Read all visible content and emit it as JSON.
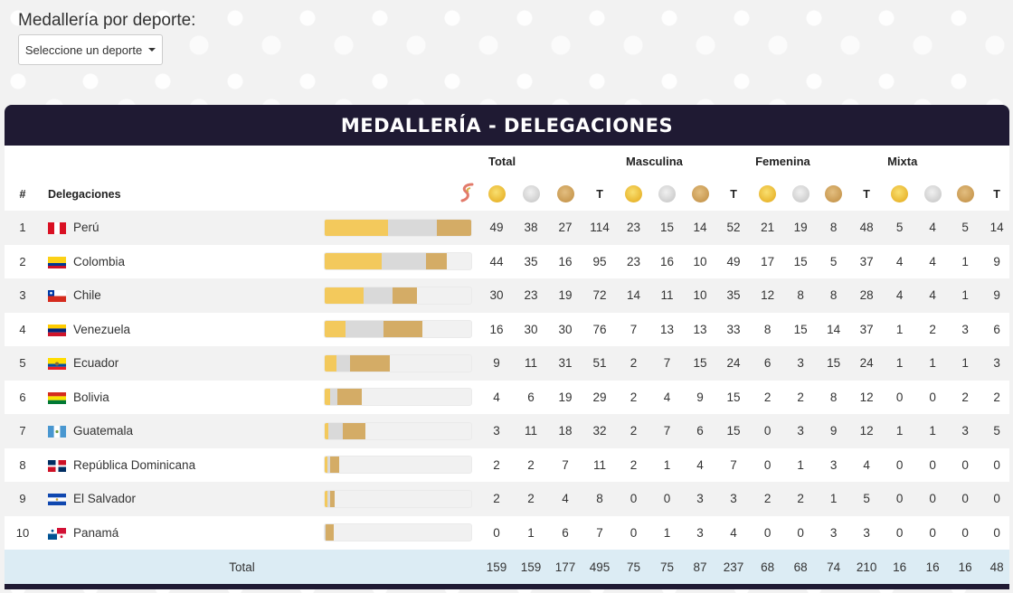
{
  "filter": {
    "label": "Medallería por deporte:",
    "select_value": "Seleccione un deporte"
  },
  "panel": {
    "title": "MEDALLERÍA - DELEGACIONES"
  },
  "columns": {
    "groups": [
      "Total",
      "Masculina",
      "Femenina",
      "Mixta"
    ],
    "rank": "#",
    "delegation": "Delegaciones",
    "total_short": "T"
  },
  "colors": {
    "gold": "#f3c95c",
    "silver": "#d9d9d9",
    "bronze": "#d4ac66",
    "header_bg": "#1f1a33",
    "footer_bg": "#dcecf4"
  },
  "rows": [
    {
      "rank": "1",
      "name": "Perú",
      "flag": "peru",
      "total": [
        49,
        38,
        27,
        114
      ],
      "masc": [
        23,
        15,
        14,
        52
      ],
      "fem": [
        21,
        19,
        8,
        48
      ],
      "mixta": [
        5,
        4,
        5,
        14
      ]
    },
    {
      "rank": "2",
      "name": "Colombia",
      "flag": "colombia",
      "total": [
        44,
        35,
        16,
        95
      ],
      "masc": [
        23,
        16,
        10,
        49
      ],
      "fem": [
        17,
        15,
        5,
        37
      ],
      "mixta": [
        4,
        4,
        1,
        9
      ]
    },
    {
      "rank": "3",
      "name": "Chile",
      "flag": "chile",
      "total": [
        30,
        23,
        19,
        72
      ],
      "masc": [
        14,
        11,
        10,
        35
      ],
      "fem": [
        12,
        8,
        8,
        28
      ],
      "mixta": [
        4,
        4,
        1,
        9
      ]
    },
    {
      "rank": "4",
      "name": "Venezuela",
      "flag": "venezuela",
      "total": [
        16,
        30,
        30,
        76
      ],
      "masc": [
        7,
        13,
        13,
        33
      ],
      "fem": [
        8,
        15,
        14,
        37
      ],
      "mixta": [
        1,
        2,
        3,
        6
      ]
    },
    {
      "rank": "5",
      "name": "Ecuador",
      "flag": "ecuador",
      "total": [
        9,
        11,
        31,
        51
      ],
      "masc": [
        2,
        7,
        15,
        24
      ],
      "fem": [
        6,
        3,
        15,
        24
      ],
      "mixta": [
        1,
        1,
        1,
        3
      ]
    },
    {
      "rank": "6",
      "name": "Bolivia",
      "flag": "bolivia",
      "total": [
        4,
        6,
        19,
        29
      ],
      "masc": [
        2,
        4,
        9,
        15
      ],
      "fem": [
        2,
        2,
        8,
        12
      ],
      "mixta": [
        0,
        0,
        2,
        2
      ]
    },
    {
      "rank": "7",
      "name": "Guatemala",
      "flag": "guatemala",
      "total": [
        3,
        11,
        18,
        32
      ],
      "masc": [
        2,
        7,
        6,
        15
      ],
      "fem": [
        0,
        3,
        9,
        12
      ],
      "mixta": [
        1,
        1,
        3,
        5
      ]
    },
    {
      "rank": "8",
      "name": "República Dominicana",
      "flag": "dominicana",
      "total": [
        2,
        2,
        7,
        11
      ],
      "masc": [
        2,
        1,
        4,
        7
      ],
      "fem": [
        0,
        1,
        3,
        4
      ],
      "mixta": [
        0,
        0,
        0,
        0
      ]
    },
    {
      "rank": "9",
      "name": "El Salvador",
      "flag": "salvador",
      "total": [
        2,
        2,
        4,
        8
      ],
      "masc": [
        0,
        0,
        3,
        3
      ],
      "fem": [
        2,
        2,
        1,
        5
      ],
      "mixta": [
        0,
        0,
        0,
        0
      ]
    },
    {
      "rank": "10",
      "name": "Panamá",
      "flag": "panama",
      "total": [
        0,
        1,
        6,
        7
      ],
      "masc": [
        0,
        1,
        3,
        4
      ],
      "fem": [
        0,
        0,
        3,
        3
      ],
      "mixta": [
        0,
        0,
        0,
        0
      ]
    }
  ],
  "footer": {
    "label": "Total",
    "total": [
      159,
      159,
      177,
      495
    ],
    "masc": [
      75,
      75,
      87,
      237
    ],
    "fem": [
      68,
      68,
      74,
      210
    ],
    "mixta": [
      16,
      16,
      16,
      48
    ]
  }
}
